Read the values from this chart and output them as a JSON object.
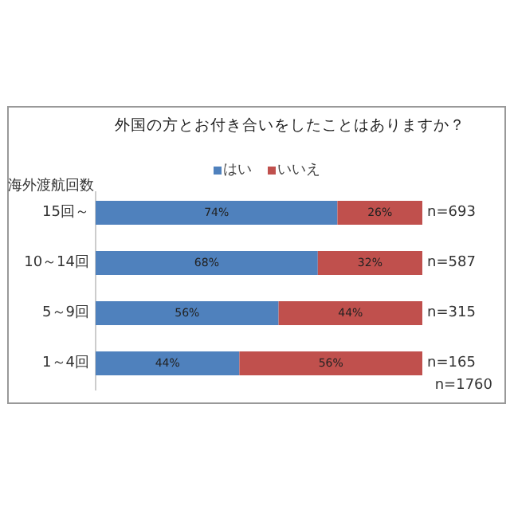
{
  "chart_data": {
    "type": "bar",
    "orientation": "horizontal",
    "stacked": true,
    "title": "外国の方とお付き合いをしたことはありますか？",
    "ylabel": "海外渡航回数",
    "categories": [
      "15回～",
      "10～14回",
      "5～9回",
      "1～4回"
    ],
    "series": [
      {
        "name": "はい",
        "color": "#4f81bd",
        "values": [
          74,
          68,
          56,
          44
        ],
        "value_labels": [
          "74%",
          "68%",
          "56%",
          "44%"
        ]
      },
      {
        "name": "いいえ",
        "color": "#c0504d",
        "values": [
          26,
          32,
          44,
          56
        ],
        "value_labels": [
          "26%",
          "32%",
          "44%",
          "56%"
        ]
      }
    ],
    "xlim": [
      0,
      100
    ],
    "tick_labels": false,
    "legend": "top",
    "annotations": [
      "n=693",
      "n=587",
      "n=315",
      "n=165",
      "n=1760"
    ]
  }
}
